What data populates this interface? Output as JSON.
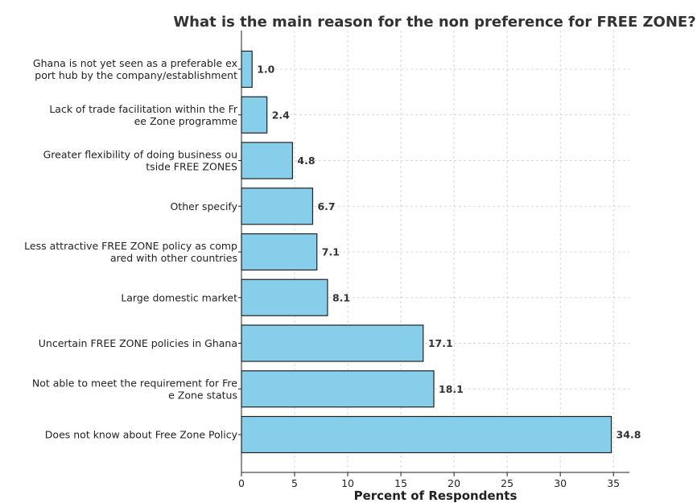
{
  "chart_data": {
    "type": "bar",
    "orientation": "horizontal",
    "title": "What is the main reason for the non preference for FREE ZONE?",
    "xlabel": "Percent of Respondents",
    "ylabel": "",
    "xlim": [
      0,
      36.5
    ],
    "xticks": [
      0,
      5,
      10,
      15,
      20,
      25,
      30,
      35
    ],
    "grid": true,
    "bar_color": "#87ceeb",
    "categories": [
      [
        "Ghana is not yet seen as a preferable ex",
        "port hub by the company/establishment"
      ],
      [
        "Lack of trade facilitation within the Fr",
        "ee Zone programme"
      ],
      [
        "Greater flexibility of doing business ou",
        "tside FREE ZONES"
      ],
      [
        "Other specify"
      ],
      [
        "Less attractive FREE ZONE policy as comp",
        "ared with other countries"
      ],
      [
        "Large domestic market"
      ],
      [
        "Uncertain FREE ZONE policies in Ghana"
      ],
      [
        "Not able to meet the requirement for Fre",
        "e Zone status"
      ],
      [
        "Does not know about Free Zone Policy"
      ]
    ],
    "values": [
      1.0,
      2.4,
      4.8,
      6.7,
      7.1,
      8.1,
      17.1,
      18.1,
      34.8
    ],
    "data_labels": [
      "1.0",
      "2.4",
      "4.8",
      "6.7",
      "7.1",
      "8.1",
      "17.1",
      "18.1",
      "34.8"
    ]
  }
}
